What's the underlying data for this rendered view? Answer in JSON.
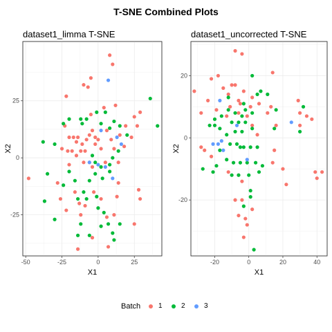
{
  "title": "T-SNE Combined Plots",
  "legend": {
    "title": "Batch",
    "entries": [
      {
        "label": "1",
        "color": "#F8766D"
      },
      {
        "label": "2",
        "color": "#00BA38"
      },
      {
        "label": "3",
        "color": "#619CFF"
      }
    ]
  },
  "chart_data": [
    {
      "type": "scatter",
      "title": "dataset1_limma T-SNE",
      "xlabel": "X1",
      "ylabel": "X2",
      "xlim": [
        -52,
        44
      ],
      "ylim": [
        -43,
        51
      ],
      "xticks": [
        -50,
        -25,
        0,
        25
      ],
      "yticks": [
        -25,
        0,
        25
      ],
      "grid": true,
      "series": [
        {
          "name": "1",
          "color": "#F8766D",
          "points": [
            [
              8,
              45
            ],
            [
              10,
              41
            ],
            [
              -5,
              35
            ],
            [
              -10,
              32
            ],
            [
              -7,
              31
            ],
            [
              -22,
              27
            ],
            [
              -23,
              14
            ],
            [
              -20,
              9
            ],
            [
              -17,
              9
            ],
            [
              -14,
              9
            ],
            [
              -15,
              7
            ],
            [
              -11,
              6
            ],
            [
              -8,
              8
            ],
            [
              -6,
              10
            ],
            [
              -4,
              12
            ],
            [
              -2,
              9
            ],
            [
              0,
              8
            ],
            [
              -2,
              6
            ],
            [
              2,
              4
            ],
            [
              -25,
              4
            ],
            [
              -21,
              3
            ],
            [
              -18,
              3
            ],
            [
              -12,
              3
            ],
            [
              -9,
              3
            ],
            [
              -15,
              1
            ],
            [
              -10,
              -2
            ],
            [
              -6,
              -2
            ],
            [
              5,
              -2
            ],
            [
              14,
              -2
            ],
            [
              -20,
              -3
            ],
            [
              -4,
              -4
            ],
            [
              18,
              5
            ],
            [
              23,
              9
            ],
            [
              25,
              18
            ],
            [
              29,
              20
            ],
            [
              27,
              14
            ],
            [
              19,
              14
            ],
            [
              15,
              10
            ],
            [
              6,
              12
            ],
            [
              9,
              8
            ],
            [
              11,
              4
            ],
            [
              4,
              22
            ],
            [
              12,
              23
            ],
            [
              -5,
              19
            ],
            [
              -28,
              -11
            ],
            [
              -48,
              -9
            ],
            [
              -26,
              -18
            ],
            [
              -22,
              -23
            ],
            [
              -13,
              -20
            ],
            [
              -9,
              -21
            ],
            [
              -16,
              -15
            ],
            [
              -12,
              -25
            ],
            [
              -3,
              -15
            ],
            [
              2,
              -18
            ],
            [
              6,
              -26
            ],
            [
              11,
              -25
            ],
            [
              13,
              -17
            ],
            [
              14,
              -11
            ],
            [
              28,
              -14
            ],
            [
              29,
              -18
            ],
            [
              25,
              -29
            ],
            [
              -14,
              -40
            ],
            [
              -4,
              -35
            ],
            [
              7,
              -39
            ]
          ]
        },
        {
          "name": "2",
          "color": "#00BA38",
          "points": [
            [
              -20,
              17
            ],
            [
              -12,
              17
            ],
            [
              -1,
              20
            ],
            [
              5,
              20
            ],
            [
              -24,
              15
            ],
            [
              -11,
              15
            ],
            [
              -8,
              17
            ],
            [
              2,
              15
            ],
            [
              8,
              13
            ],
            [
              11,
              16
            ],
            [
              15,
              14
            ],
            [
              20,
              10
            ],
            [
              -38,
              7
            ],
            [
              -30,
              6
            ],
            [
              36,
              26
            ],
            [
              41,
              14
            ],
            [
              -4,
              1
            ],
            [
              -2,
              -2
            ],
            [
              2,
              -4
            ],
            [
              8,
              -3
            ],
            [
              10,
              0
            ],
            [
              14,
              3
            ],
            [
              -20,
              -6
            ],
            [
              -24,
              -12
            ],
            [
              -16,
              -10
            ],
            [
              -6,
              -10
            ],
            [
              -2,
              -7
            ],
            [
              3,
              -9
            ],
            [
              8,
              -6
            ],
            [
              -35,
              -7
            ],
            [
              -37,
              -19
            ],
            [
              -14,
              -18
            ],
            [
              -10,
              -15
            ],
            [
              -8,
              -18
            ],
            [
              -1,
              -17
            ],
            [
              0,
              -22
            ],
            [
              4,
              -24
            ],
            [
              -12,
              -29
            ],
            [
              -30,
              -27
            ],
            [
              -14,
              -34
            ],
            [
              -6,
              -34
            ],
            [
              2,
              -30
            ],
            [
              7,
              -29
            ],
            [
              10,
              -33
            ],
            [
              11,
              -36
            ],
            [
              15,
              -29
            ]
          ]
        },
        {
          "name": "3",
          "color": "#619CFF",
          "points": [
            [
              7,
              34
            ],
            [
              2,
              12
            ],
            [
              13,
              9
            ],
            [
              -6,
              -2
            ],
            [
              0,
              -3
            ],
            [
              16,
              6
            ],
            [
              5,
              -4
            ],
            [
              10,
              -9
            ]
          ]
        }
      ]
    },
    {
      "type": "scatter",
      "title": "dataset1_uncorrected T-SNE",
      "xlabel": "X1",
      "ylabel": "X2",
      "xlim": [
        -34,
        46
      ],
      "ylim": [
        -38,
        31
      ],
      "xticks": [
        -20,
        0,
        20,
        40
      ],
      "yticks": [
        -20,
        0,
        20
      ],
      "grid": true,
      "series": [
        {
          "name": "1",
          "color": "#F8766D",
          "points": [
            [
              -8,
              28
            ],
            [
              -4,
              27
            ],
            [
              -22,
              19
            ],
            [
              -18,
              20
            ],
            [
              -10,
              17
            ],
            [
              -15,
              16
            ],
            [
              -12,
              14
            ],
            [
              -8,
              17
            ],
            [
              -3,
              15
            ],
            [
              -6,
              12
            ],
            [
              2,
              13
            ],
            [
              6,
              11
            ],
            [
              14,
              21
            ],
            [
              -32,
              15
            ],
            [
              -28,
              8
            ],
            [
              -24,
              12
            ],
            [
              -11,
              10
            ],
            [
              -5,
              11
            ],
            [
              1,
              10
            ],
            [
              -1,
              7
            ],
            [
              -6,
              8
            ],
            [
              2,
              4
            ],
            [
              11,
              8
            ],
            [
              13,
              10
            ],
            [
              -19,
              9
            ],
            [
              -13,
              7
            ],
            [
              29,
              12
            ],
            [
              30,
              8
            ],
            [
              34,
              7
            ],
            [
              37,
              6
            ],
            [
              16,
              4
            ],
            [
              5,
              1
            ],
            [
              15,
              -4
            ],
            [
              14,
              -8
            ],
            [
              20,
              -10
            ],
            [
              30,
              4
            ],
            [
              39,
              -11
            ],
            [
              40,
              -13
            ],
            [
              43,
              -11
            ],
            [
              22,
              -15
            ],
            [
              -28,
              -3
            ],
            [
              -26,
              -4
            ],
            [
              -22,
              -6
            ],
            [
              -12,
              -11
            ],
            [
              -6,
              -12
            ],
            [
              -4,
              -14
            ],
            [
              -8,
              -20
            ],
            [
              -4,
              -20
            ],
            [
              -2,
              -26
            ],
            [
              -6,
              -25
            ],
            [
              2,
              -23
            ],
            [
              -1,
              -28
            ],
            [
              -3,
              -32
            ]
          ]
        },
        {
          "name": "2",
          "color": "#00BA38",
          "points": [
            [
              2,
              20
            ],
            [
              7,
              15
            ],
            [
              -12,
              13
            ],
            [
              -3,
              11
            ],
            [
              5,
              14
            ],
            [
              -2,
              9
            ],
            [
              11,
              14
            ],
            [
              16,
              9
            ],
            [
              -12,
              9
            ],
            [
              -8,
              8
            ],
            [
              -4,
              7
            ],
            [
              2,
              8
            ],
            [
              -16,
              7
            ],
            [
              -20,
              6
            ],
            [
              -10,
              5
            ],
            [
              -6,
              5
            ],
            [
              -2,
              5
            ],
            [
              2,
              3
            ],
            [
              -17,
              3
            ],
            [
              -13,
              1
            ],
            [
              -8,
              2
            ],
            [
              -4,
              2
            ],
            [
              -20,
              4
            ],
            [
              -23,
              4
            ],
            [
              15,
              3
            ],
            [
              32,
              10
            ],
            [
              30,
              2
            ],
            [
              -17,
              -4
            ],
            [
              -11,
              -2
            ],
            [
              -7,
              -2
            ],
            [
              -5,
              -3
            ],
            [
              -3,
              -3
            ],
            [
              1,
              -3
            ],
            [
              5,
              -3
            ],
            [
              -19,
              -9
            ],
            [
              -13,
              -7
            ],
            [
              -9,
              -8
            ],
            [
              -5,
              -8
            ],
            [
              -1,
              -8
            ],
            [
              4,
              -8
            ],
            [
              8,
              -9
            ],
            [
              -27,
              -10
            ],
            [
              -21,
              -11
            ],
            [
              -10,
              -12
            ],
            [
              -6,
              -12
            ],
            [
              0,
              -12
            ],
            [
              6,
              -11
            ],
            [
              1,
              -17
            ],
            [
              1,
              -19
            ],
            [
              -3,
              -22
            ],
            [
              3,
              -36
            ]
          ]
        },
        {
          "name": "3",
          "color": "#619CFF",
          "points": [
            [
              -17,
              12
            ],
            [
              -21,
              -2
            ],
            [
              -18,
              -2
            ],
            [
              -15,
              -4
            ],
            [
              -16,
              -1
            ],
            [
              25,
              5
            ],
            [
              -1,
              -7
            ],
            [
              -7,
              4
            ]
          ]
        }
      ]
    }
  ]
}
